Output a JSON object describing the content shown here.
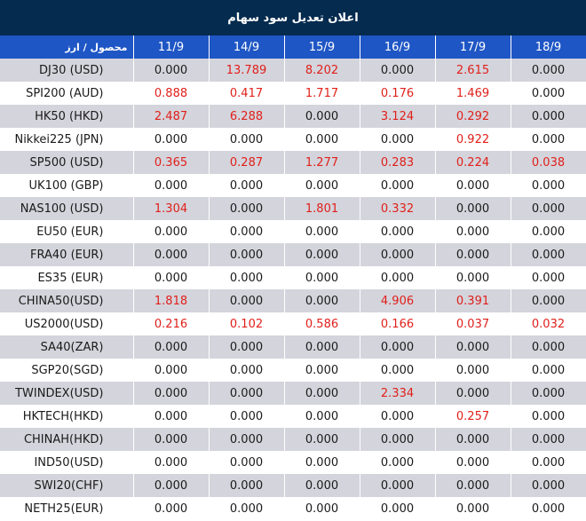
{
  "title": "اعلان تعدیل سود سهام",
  "header": {
    "product_col": "محصول / ارز",
    "dates": [
      "11/9",
      "14/9",
      "15/9",
      "16/9",
      "17/9",
      "18/9"
    ]
  },
  "colors": {
    "title_bg": "#052b4f",
    "header_bg": "#1f56c5",
    "row_alt": "#d4d4dc",
    "positive": "#e0201a"
  },
  "rows": [
    {
      "name": "DJ30 (USD)",
      "values": [
        "0.000",
        "13.789",
        "8.202",
        "0.000",
        "2.615",
        "0.000"
      ]
    },
    {
      "name": "SPI200 (AUD)",
      "values": [
        "0.888",
        "0.417",
        "1.717",
        "0.176",
        "1.469",
        "0.000"
      ]
    },
    {
      "name": "HK50 (HKD)",
      "values": [
        "2.487",
        "6.288",
        "0.000",
        "3.124",
        "0.292",
        "0.000"
      ]
    },
    {
      "name": "Nikkei225 (JPN)",
      "values": [
        "0.000",
        "0.000",
        "0.000",
        "0.000",
        "0.922",
        "0.000"
      ]
    },
    {
      "name": "SP500 (USD)",
      "values": [
        "0.365",
        "0.287",
        "1.277",
        "0.283",
        "0.224",
        "0.038"
      ]
    },
    {
      "name": "UK100 (GBP)",
      "values": [
        "0.000",
        "0.000",
        "0.000",
        "0.000",
        "0.000",
        "0.000"
      ]
    },
    {
      "name": "NAS100 (USD)",
      "values": [
        "1.304",
        "0.000",
        "1.801",
        "0.332",
        "0.000",
        "0.000"
      ]
    },
    {
      "name": "EU50 (EUR)",
      "values": [
        "0.000",
        "0.000",
        "0.000",
        "0.000",
        "0.000",
        "0.000"
      ]
    },
    {
      "name": "FRA40 (EUR)",
      "values": [
        "0.000",
        "0.000",
        "0.000",
        "0.000",
        "0.000",
        "0.000"
      ]
    },
    {
      "name": "ES35 (EUR)",
      "values": [
        "0.000",
        "0.000",
        "0.000",
        "0.000",
        "0.000",
        "0.000"
      ]
    },
    {
      "name": "CHINA50(USD)",
      "values": [
        "1.818",
        "0.000",
        "0.000",
        "4.906",
        "0.391",
        "0.000"
      ]
    },
    {
      "name": "US2000(USD)",
      "values": [
        "0.216",
        "0.102",
        "0.586",
        "0.166",
        "0.037",
        "0.032"
      ]
    },
    {
      "name": "SA40(ZAR)",
      "values": [
        "0.000",
        "0.000",
        "0.000",
        "0.000",
        "0.000",
        "0.000"
      ]
    },
    {
      "name": "SGP20(SGD)",
      "values": [
        "0.000",
        "0.000",
        "0.000",
        "0.000",
        "0.000",
        "0.000"
      ]
    },
    {
      "name": "TWINDEX(USD)",
      "values": [
        "0.000",
        "0.000",
        "0.000",
        "2.334",
        "0.000",
        "0.000"
      ]
    },
    {
      "name": "HKTECH(HKD)",
      "values": [
        "0.000",
        "0.000",
        "0.000",
        "0.000",
        "0.257",
        "0.000"
      ]
    },
    {
      "name": "CHINAH(HKD)",
      "values": [
        "0.000",
        "0.000",
        "0.000",
        "0.000",
        "0.000",
        "0.000"
      ]
    },
    {
      "name": "IND50(USD)",
      "values": [
        "0.000",
        "0.000",
        "0.000",
        "0.000",
        "0.000",
        "0.000"
      ]
    },
    {
      "name": "SWI20(CHF)",
      "values": [
        "0.000",
        "0.000",
        "0.000",
        "0.000",
        "0.000",
        "0.000"
      ]
    },
    {
      "name": "NETH25(EUR)",
      "values": [
        "0.000",
        "0.000",
        "0.000",
        "0.000",
        "0.000",
        "0.000"
      ]
    }
  ]
}
